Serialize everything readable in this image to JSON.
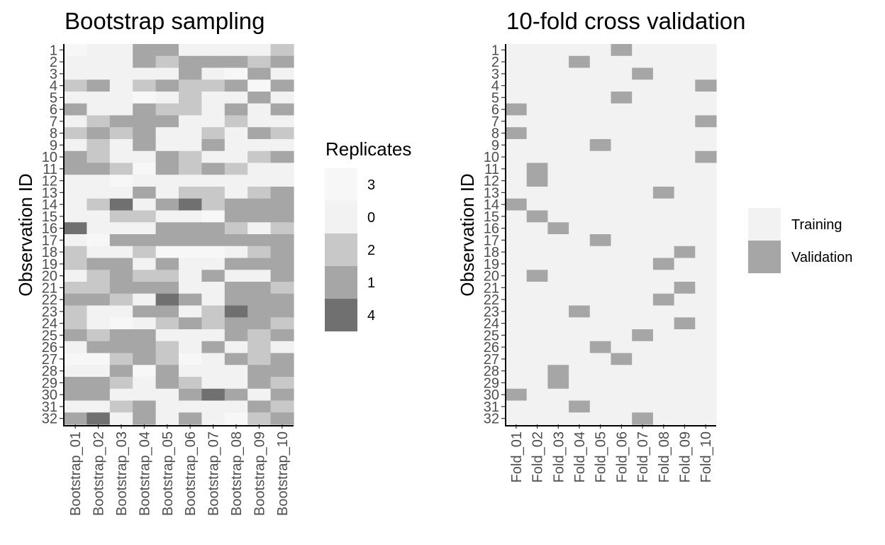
{
  "colors": {
    "0": "#f2f2f2",
    "1": "#a6a6a6",
    "2": "#c8c8c8",
    "3": "#f7f7f7",
    "4": "#707070",
    "Training": "#f2f2f2",
    "Validation": "#a6a6a6",
    "axis": "#000000",
    "tick_text": "#4d4d4d"
  },
  "chart_data": [
    {
      "type": "heatmap",
      "title": "Bootstrap sampling",
      "ylabel": "Observation ID",
      "xlabel": "",
      "rows": [
        "1",
        "2",
        "3",
        "4",
        "5",
        "6",
        "7",
        "8",
        "9",
        "10",
        "11",
        "12",
        "13",
        "14",
        "15",
        "16",
        "17",
        "18",
        "19",
        "20",
        "21",
        "22",
        "23",
        "24",
        "25",
        "26",
        "27",
        "28",
        "29",
        "30",
        "31",
        "32"
      ],
      "columns": [
        "Bootstrap_01",
        "Bootstrap_02",
        "Bootstrap_03",
        "Bootstrap_04",
        "Bootstrap_05",
        "Bootstrap_06",
        "Bootstrap_07",
        "Bootstrap_08",
        "Bootstrap_09",
        "Bootstrap_10"
      ],
      "legend": {
        "title": "Replicates",
        "entries": [
          "3",
          "0",
          "2",
          "1",
          "4"
        ]
      },
      "values": [
        [
          3,
          0,
          0,
          1,
          1,
          0,
          0,
          0,
          0,
          2
        ],
        [
          0,
          0,
          0,
          1,
          2,
          1,
          1,
          1,
          2,
          1
        ],
        [
          0,
          0,
          0,
          0,
          0,
          1,
          0,
          3,
          1,
          0
        ],
        [
          2,
          1,
          0,
          2,
          1,
          2,
          2,
          1,
          3,
          1
        ],
        [
          0,
          0,
          0,
          3,
          0,
          2,
          0,
          0,
          1,
          0
        ],
        [
          1,
          0,
          0,
          1,
          2,
          2,
          0,
          1,
          0,
          1
        ],
        [
          0,
          2,
          1,
          1,
          1,
          0,
          0,
          2,
          0,
          0
        ],
        [
          2,
          1,
          2,
          1,
          0,
          0,
          2,
          0,
          1,
          2
        ],
        [
          0,
          2,
          0,
          1,
          0,
          0,
          1,
          0,
          0,
          0
        ],
        [
          1,
          2,
          0,
          0,
          1,
          2,
          0,
          0,
          2,
          1
        ],
        [
          1,
          1,
          2,
          3,
          1,
          2,
          1,
          2,
          0,
          0
        ],
        [
          0,
          0,
          3,
          0,
          0,
          0,
          0,
          0,
          0,
          0
        ],
        [
          0,
          0,
          0,
          1,
          0,
          2,
          2,
          0,
          2,
          1
        ],
        [
          0,
          2,
          4,
          0,
          1,
          4,
          2,
          1,
          1,
          1
        ],
        [
          0,
          0,
          2,
          2,
          0,
          0,
          3,
          1,
          1,
          1
        ],
        [
          4,
          0,
          0,
          0,
          1,
          1,
          1,
          2,
          0,
          2
        ],
        [
          0,
          3,
          1,
          1,
          1,
          1,
          1,
          1,
          1,
          1
        ],
        [
          2,
          0,
          0,
          2,
          3,
          3,
          3,
          0,
          2,
          1
        ],
        [
          2,
          1,
          1,
          0,
          1,
          0,
          0,
          1,
          1,
          1
        ],
        [
          0,
          2,
          1,
          2,
          2,
          0,
          1,
          0,
          0,
          1
        ],
        [
          2,
          2,
          1,
          1,
          1,
          0,
          0,
          1,
          1,
          2
        ],
        [
          1,
          1,
          2,
          0,
          4,
          1,
          0,
          1,
          1,
          1
        ],
        [
          2,
          0,
          0,
          1,
          1,
          0,
          2,
          4,
          1,
          1
        ],
        [
          2,
          0,
          3,
          0,
          2,
          1,
          2,
          1,
          1,
          2
        ],
        [
          1,
          2,
          1,
          1,
          0,
          0,
          0,
          1,
          2,
          1
        ],
        [
          0,
          1,
          1,
          1,
          2,
          0,
          1,
          0,
          2,
          0
        ],
        [
          3,
          3,
          2,
          1,
          2,
          3,
          0,
          1,
          2,
          1
        ],
        [
          0,
          0,
          1,
          3,
          1,
          0,
          0,
          0,
          1,
          1
        ],
        [
          1,
          1,
          2,
          0,
          1,
          2,
          0,
          0,
          1,
          2
        ],
        [
          1,
          1,
          0,
          0,
          0,
          1,
          4,
          1,
          0,
          1
        ],
        [
          0,
          0,
          2,
          1,
          0,
          0,
          0,
          0,
          1,
          2
        ],
        [
          1,
          4,
          0,
          1,
          0,
          1,
          0,
          3,
          2,
          1
        ]
      ]
    },
    {
      "type": "heatmap",
      "title": "10-fold cross validation",
      "ylabel": "Observation ID",
      "xlabel": "",
      "rows": [
        "1",
        "2",
        "3",
        "4",
        "5",
        "6",
        "7",
        "8",
        "9",
        "10",
        "11",
        "12",
        "13",
        "14",
        "15",
        "16",
        "17",
        "18",
        "19",
        "20",
        "21",
        "22",
        "23",
        "24",
        "25",
        "26",
        "27",
        "28",
        "29",
        "30",
        "31",
        "32"
      ],
      "columns": [
        "Fold_01",
        "Fold_02",
        "Fold_03",
        "Fold_04",
        "Fold_05",
        "Fold_06",
        "Fold_07",
        "Fold_08",
        "Fold_09",
        "Fold_10"
      ],
      "legend": {
        "title": "",
        "entries": [
          "Training",
          "Validation"
        ]
      },
      "validation_fold_by_observation": [
        6,
        4,
        7,
        10,
        6,
        1,
        10,
        1,
        5,
        10,
        2,
        2,
        8,
        1,
        2,
        3,
        5,
        9,
        8,
        2,
        9,
        8,
        4,
        9,
        7,
        5,
        6,
        3,
        3,
        1,
        4,
        7
      ]
    }
  ]
}
